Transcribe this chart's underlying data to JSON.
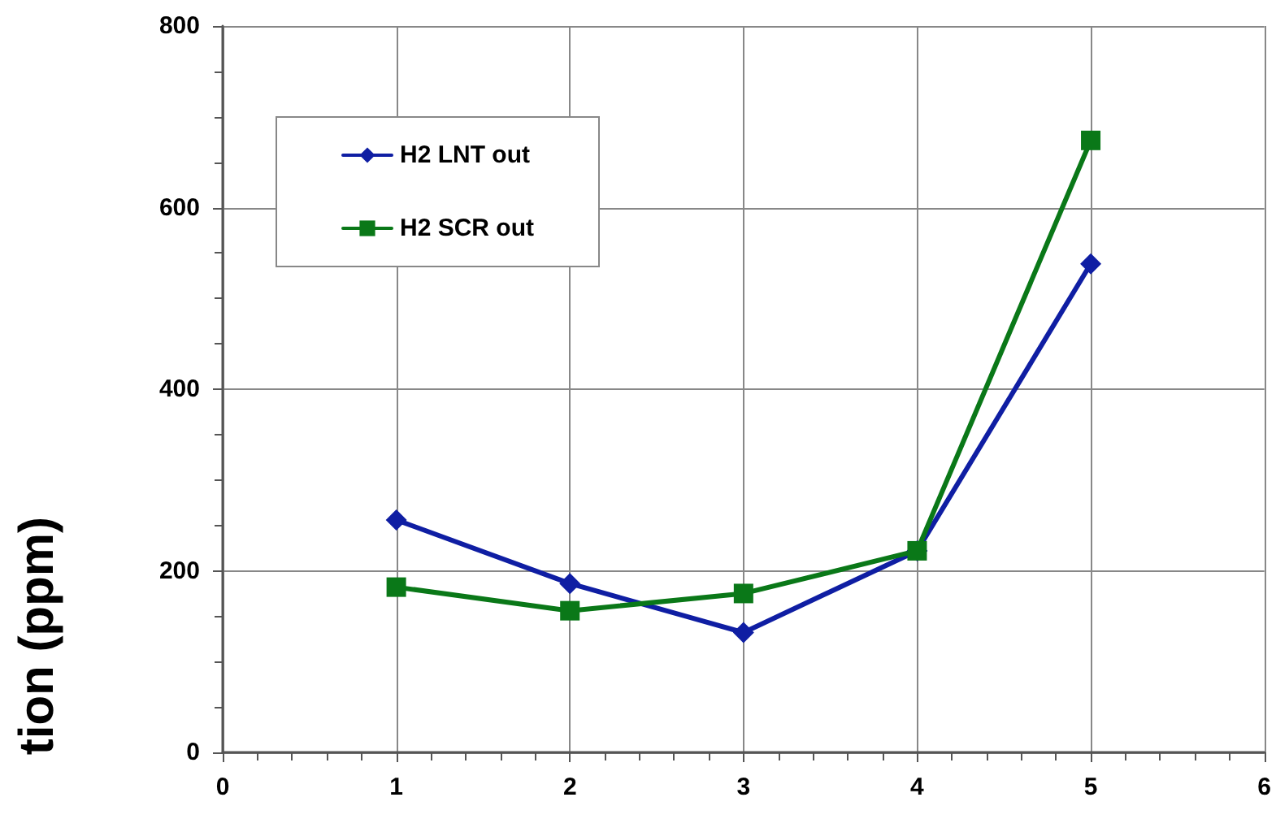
{
  "chart_data": {
    "type": "line",
    "ylabel": "tion (ppm)",
    "x": [
      1,
      2,
      3,
      4,
      5
    ],
    "series": [
      {
        "name": "H2 LNT out",
        "color": "#0f1ea3",
        "marker": "diamond",
        "values": [
          256,
          186,
          132,
          222,
          538
        ]
      },
      {
        "name": "H2 SCR out",
        "color": "#0a7818",
        "marker": "square",
        "values": [
          182,
          156,
          175,
          222,
          674
        ]
      }
    ],
    "xlim": [
      0,
      6
    ],
    "xticks": [
      0,
      1,
      2,
      3,
      4,
      5,
      6
    ],
    "ylim": [
      0,
      800
    ],
    "yticks": [
      0,
      200,
      400,
      600,
      800
    ],
    "grid": true,
    "legend": "top left",
    "line_style": "solid"
  }
}
